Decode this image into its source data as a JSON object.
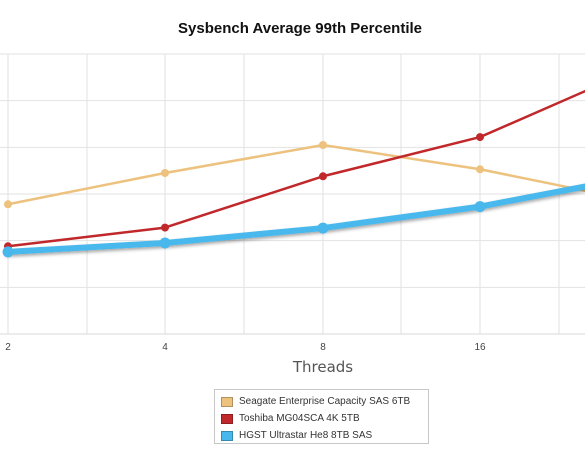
{
  "chart_data": {
    "type": "line",
    "title": "Sysbench Average 99th Percentile",
    "xlabel": "Threads",
    "ylabel": "",
    "categories": [
      "2",
      "4",
      "8",
      "16",
      ""
    ],
    "grid": true,
    "legend_position": "bottom",
    "series": [
      {
        "name": "Seagate Enterprise Capacity SAS 6TB",
        "color": "#ecc27e",
        "values": [
          2.78,
          3.45,
          4.05,
          3.53,
          3.05
        ]
      },
      {
        "name": "Toshiba MG04SCA 4K 5TB",
        "color": "#c0282b",
        "values": [
          1.88,
          2.28,
          3.38,
          4.22,
          5.25
        ]
      },
      {
        "name": "HGST Ultrastar He8 8TB SAS",
        "color": "#48b8ec",
        "values": [
          1.76,
          1.95,
          2.27,
          2.73,
          3.18
        ]
      }
    ]
  }
}
